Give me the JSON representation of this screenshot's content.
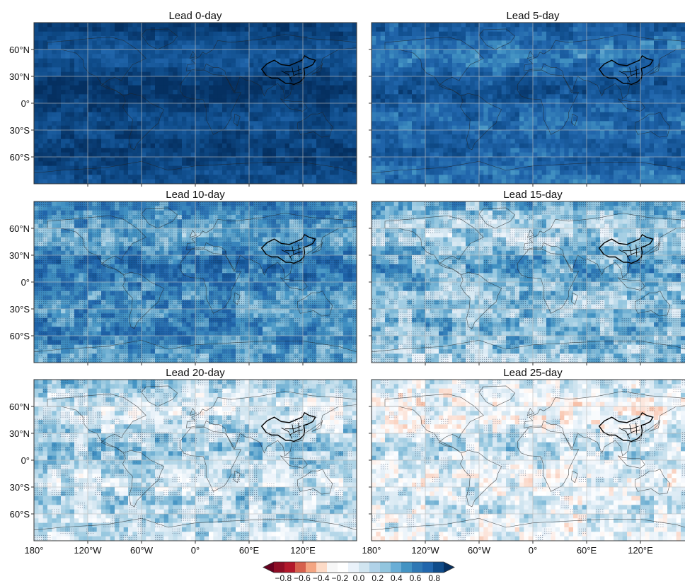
{
  "figure": {
    "panels": [
      {
        "title": "Lead 0-day",
        "lead_days": 0,
        "mean_value": 0.84,
        "stippling": "none"
      },
      {
        "title": "Lead 5-day",
        "lead_days": 5,
        "mean_value": 0.68,
        "stippling": "none"
      },
      {
        "title": "Lead 10-day",
        "lead_days": 10,
        "mean_value": 0.52,
        "stippling": "dense"
      },
      {
        "title": "Lead 15-day",
        "lead_days": 15,
        "mean_value": 0.36,
        "stippling": "moderate"
      },
      {
        "title": "Lead 20-day",
        "lead_days": 20,
        "mean_value": 0.24,
        "stippling": "sparse"
      },
      {
        "title": "Lead 25-day",
        "lead_days": 25,
        "mean_value": 0.13,
        "stippling": "very sparse"
      }
    ],
    "lat_ticks": [
      "60°N",
      "30°N",
      "0°",
      "30°S",
      "60°S"
    ],
    "lon_ticks": [
      "180°",
      "120°W",
      "60°W",
      "0°",
      "60°E",
      "120°E"
    ],
    "colorbar": {
      "tick_labels": [
        "−0.8",
        "−0.6",
        "−0.4",
        "−0.2",
        "0.0",
        "0.2",
        "0.4",
        "0.6",
        "0.8"
      ],
      "colors": [
        "#67001f",
        "#8e0d25",
        "#b2182b",
        "#d6604d",
        "#f4a582",
        "#fddbc7",
        "#f7f7f7",
        "#ffffff",
        "#eaf2fa",
        "#d1e5f0",
        "#b0d2e8",
        "#92c5de",
        "#6aaed6",
        "#4393c3",
        "#2f78b4",
        "#2166ac",
        "#0f4c8a",
        "#053061"
      ]
    }
  },
  "chart_data": {
    "type": "heatmap",
    "description_of_grid": "6 global maps (3 rows x 2 columns) of correlation skill by forecast lead",
    "panels": [
      {
        "title": "Lead 0-day",
        "lead_days": 0,
        "typical_value_range": [
          0.7,
          0.95
        ]
      },
      {
        "title": "Lead 5-day",
        "lead_days": 5,
        "typical_value_range": [
          0.45,
          0.9
        ]
      },
      {
        "title": "Lead 10-day",
        "lead_days": 10,
        "typical_value_range": [
          0.3,
          0.85
        ]
      },
      {
        "title": "Lead 15-day",
        "lead_days": 15,
        "typical_value_range": [
          0.1,
          0.7
        ]
      },
      {
        "title": "Lead 20-day",
        "lead_days": 20,
        "typical_value_range": [
          0.0,
          0.6
        ]
      },
      {
        "title": "Lead 25-day",
        "lead_days": 25,
        "typical_value_range": [
          -0.1,
          0.45
        ]
      }
    ],
    "x_ticks": [
      "180°",
      "120°W",
      "60°W",
      "0°",
      "60°E",
      "120°E"
    ],
    "y_ticks": [
      "60°N",
      "30°N",
      "0°",
      "30°S",
      "60°S"
    ],
    "colorbar_range": [
      -0.8,
      0.8
    ],
    "colorbar_ticks": [
      -0.8,
      -0.6,
      -0.4,
      -0.2,
      0.0,
      0.2,
      0.4,
      0.6,
      0.8
    ],
    "colormap": "RdBu diverging",
    "grid": true,
    "legend": "bottom-center colorbar"
  }
}
